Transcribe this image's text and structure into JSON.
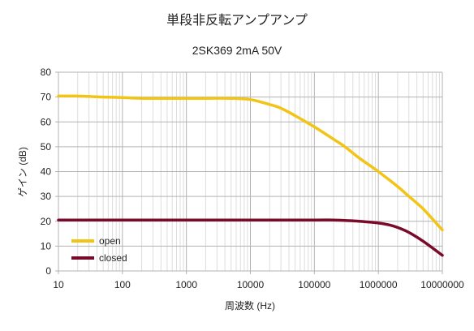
{
  "chart_data": {
    "type": "line",
    "title": "単段非反転アンプアンプ",
    "subtitle": "2SK369 2mA 50V",
    "xlabel": "周波数 (Hz)",
    "ylabel": "ゲイン (dB)",
    "xscale": "log",
    "xlim": [
      10,
      10000000
    ],
    "ylim": [
      0,
      80
    ],
    "x_ticks": [
      "10",
      "100",
      "1000",
      "10000",
      "100000",
      "1000000",
      "10000000"
    ],
    "y_ticks": [
      "0",
      "10",
      "20",
      "30",
      "40",
      "50",
      "60",
      "70",
      "80"
    ],
    "grid": "on (major and minor)",
    "legend_position": "bottom-left",
    "series": [
      {
        "name": "open",
        "color": "#f2c416",
        "x": [
          10,
          20,
          50,
          100,
          200,
          500,
          1000,
          2000,
          5000,
          10000,
          20000,
          30000,
          50000,
          100000,
          200000,
          300000,
          500000,
          1000000,
          2000000,
          3000000,
          5000000,
          10000000
        ],
        "y": [
          70.4,
          70.4,
          70.0,
          69.8,
          69.5,
          69.5,
          69.5,
          69.5,
          69.5,
          69.0,
          67.0,
          65.5,
          62.5,
          58.0,
          53.0,
          50.0,
          45.5,
          40.0,
          34.0,
          30.0,
          25.0,
          16.5
        ]
      },
      {
        "name": "closed",
        "color": "#7a0a2a",
        "x": [
          10,
          100,
          1000,
          10000,
          100000,
          200000,
          300000,
          500000,
          1000000,
          1500000,
          2000000,
          3000000,
          5000000,
          10000000
        ],
        "y": [
          20.5,
          20.5,
          20.5,
          20.5,
          20.5,
          20.5,
          20.3,
          20.0,
          19.3,
          18.5,
          17.5,
          15.5,
          12.0,
          6.3
        ]
      }
    ]
  }
}
